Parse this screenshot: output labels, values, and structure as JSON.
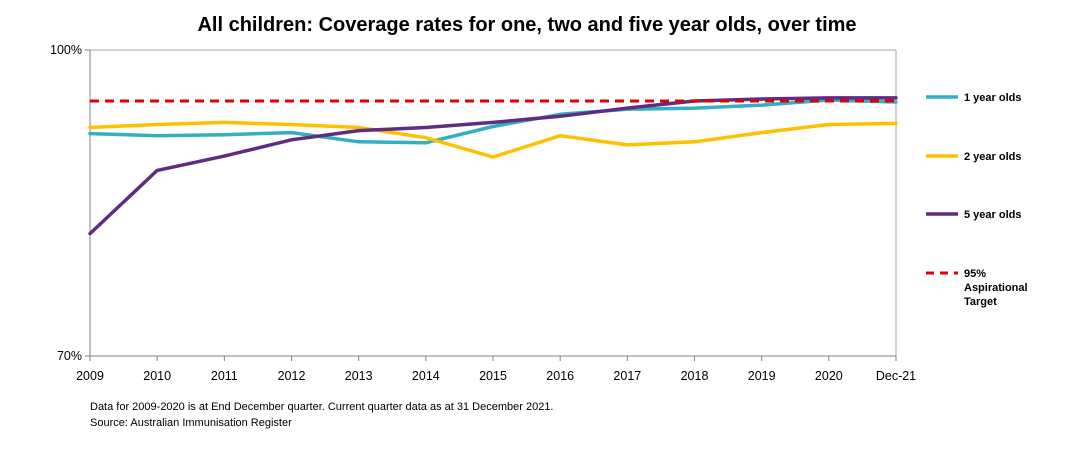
{
  "chart_data": {
    "type": "line",
    "title": "All children: Coverage rates for one, two and five year olds, over time",
    "categories": [
      "2009",
      "2010",
      "2011",
      "2012",
      "2013",
      "2014",
      "2015",
      "2016",
      "2017",
      "2018",
      "2019",
      "2020",
      "Dec-21"
    ],
    "ylim": [
      70,
      100
    ],
    "y_tick_labels": [
      "100%",
      "70%"
    ],
    "y_ticks": [
      100,
      70
    ],
    "series": [
      {
        "name": "1 year olds",
        "color": "#33AFC0",
        "dash": false,
        "values": [
          91.8,
          91.6,
          91.7,
          91.9,
          91.0,
          90.9,
          92.5,
          93.7,
          94.2,
          94.3,
          94.6,
          95.1,
          94.9
        ]
      },
      {
        "name": "2 year olds",
        "color": "#FFC000",
        "dash": false,
        "values": [
          92.4,
          92.7,
          92.9,
          92.7,
          92.4,
          91.4,
          89.5,
          91.6,
          90.7,
          91.0,
          91.9,
          92.7,
          92.8
        ]
      },
      {
        "name": "5 year olds",
        "color": "#5F2C83",
        "dash": false,
        "values": [
          82.0,
          88.2,
          89.6,
          91.2,
          92.1,
          92.4,
          92.9,
          93.5,
          94.3,
          95.0,
          95.2,
          95.3,
          95.3
        ]
      },
      {
        "name": "95% Aspirational Target",
        "color": "#E00000",
        "dash": true,
        "values": [
          95,
          95,
          95,
          95,
          95,
          95,
          95,
          95,
          95,
          95,
          95,
          95,
          95
        ]
      }
    ],
    "legend": [
      {
        "lines": [
          "1 year olds"
        ],
        "color": "#33AFC0",
        "dash": false
      },
      {
        "lines": [
          "2 year olds"
        ],
        "color": "#FFC000",
        "dash": false
      },
      {
        "lines": [
          "5 year olds"
        ],
        "color": "#5F2C83",
        "dash": false
      },
      {
        "lines": [
          "95%",
          "Aspirational",
          "Target"
        ],
        "color": "#E00000",
        "dash": true
      }
    ],
    "legend_position": "right",
    "grid": false
  },
  "footnotes": {
    "line1": "Data for 2009-2020 is at End December quarter. Current quarter data as at 31 December 2021.",
    "line2": "Source: Australian Immunisation Register"
  }
}
